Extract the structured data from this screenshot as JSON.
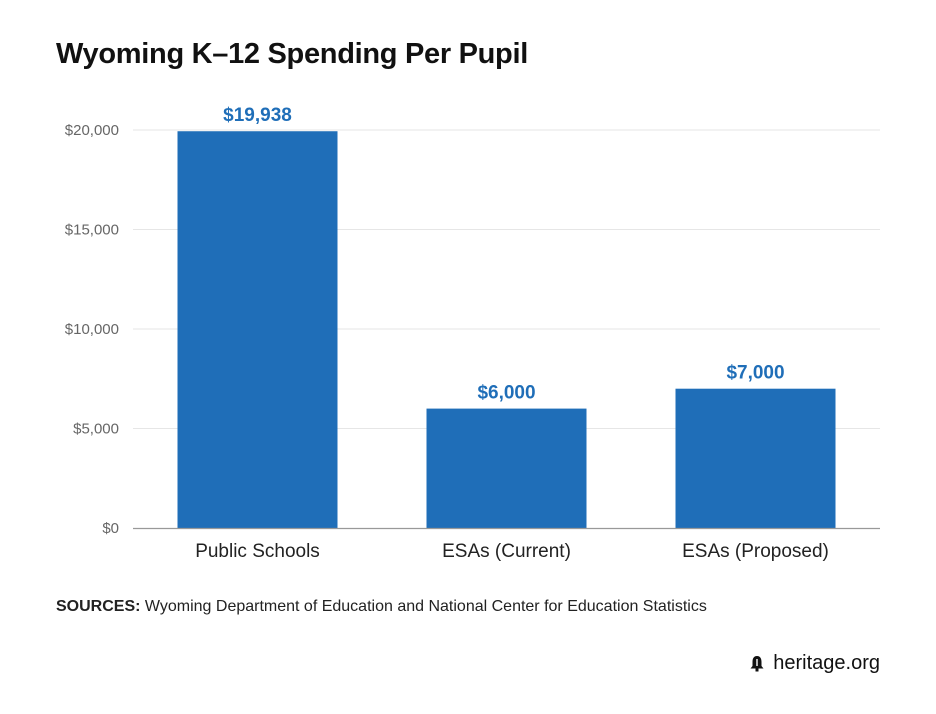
{
  "title": "Wyoming K–12 Spending Per Pupil",
  "chart_data": {
    "type": "bar",
    "categories": [
      "Public Schools",
      "ESAs (Current)",
      "ESAs (Proposed)"
    ],
    "values": [
      19938,
      6000,
      7000
    ],
    "value_labels": [
      "$19,938",
      "$6,000",
      "$7,000"
    ],
    "y_ticks": [
      0,
      5000,
      10000,
      15000,
      20000
    ],
    "y_tick_labels": [
      "$0",
      "$5,000",
      "$10,000",
      "$15,000",
      "$20,000"
    ],
    "ylim": [
      0,
      20000
    ],
    "grid": true,
    "colors": {
      "bar": "#1f6eb8",
      "value_label": "#1f6eb8",
      "grid": "#e6e6e6",
      "axis": "#999999",
      "tick_text": "#666666"
    }
  },
  "source": {
    "label": "SOURCES:",
    "text": " Wyoming Department of Education and National Center for Education Statistics"
  },
  "brand": {
    "text": "heritage.org",
    "icon": "liberty-bell-icon"
  }
}
